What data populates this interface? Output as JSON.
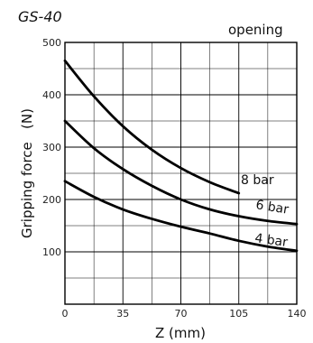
{
  "chart_data": {
    "type": "line",
    "title": "GS-40",
    "subtitle": "opening",
    "xlabel": "Z (mm)",
    "ylabel": "Gripping force   (N)",
    "xlim": [
      0,
      140
    ],
    "ylim": [
      0,
      500
    ],
    "x_major_ticks": [
      0,
      35,
      70,
      105,
      140
    ],
    "x_minor_step": 17.5,
    "y_major_ticks": [
      100,
      200,
      300,
      400,
      500
    ],
    "y_minor_step": 50,
    "x_tick_labels": [
      "0",
      "35",
      "70",
      "105",
      "140"
    ],
    "y_tick_labels": [
      "100",
      "200",
      "300",
      "400",
      "500"
    ],
    "grid": true,
    "series": [
      {
        "name": "8 bar",
        "x": [
          0,
          17.5,
          35,
          52.5,
          70,
          87.5,
          105
        ],
        "y": [
          465,
          397,
          340,
          295,
          260,
          233,
          212
        ]
      },
      {
        "name": "6 bar",
        "x": [
          0,
          17.5,
          35,
          52.5,
          70,
          87.5,
          105,
          122.5,
          140
        ],
        "y": [
          350,
          298,
          258,
          226,
          200,
          181,
          168,
          159,
          153
        ]
      },
      {
        "name": "4 bar",
        "x": [
          0,
          17.5,
          35,
          52.5,
          70,
          87.5,
          105,
          122.5,
          140
        ],
        "y": [
          235,
          205,
          181,
          163,
          148,
          135,
          121,
          110,
          102
        ]
      }
    ]
  }
}
